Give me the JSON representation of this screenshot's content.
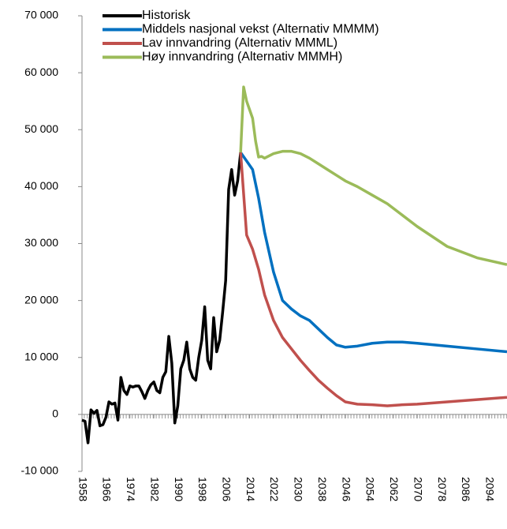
{
  "chart_data": {
    "type": "line",
    "xlim": [
      1958,
      2100
    ],
    "xticks": [
      1958,
      1966,
      1974,
      1982,
      1990,
      1998,
      2006,
      2014,
      2022,
      2030,
      2038,
      2046,
      2054,
      2062,
      2070,
      2078,
      2086,
      2094
    ],
    "ylim": [
      -10000,
      70000
    ],
    "yticks": [
      {
        "value": -10000,
        "label": "-10 000"
      },
      0,
      {
        "value": 10000,
        "label": "10 000"
      },
      {
        "value": 20000,
        "label": "20 000"
      },
      {
        "value": 30000,
        "label": "30 000"
      },
      {
        "value": 40000,
        "label": "40 000"
      },
      {
        "value": 50000,
        "label": "50 000"
      },
      {
        "value": 60000,
        "label": "60 000"
      },
      {
        "value": 70000,
        "label": "70 000"
      }
    ],
    "legend": "top-left",
    "series": [
      {
        "name": "Historisk",
        "color": "#000000",
        "x": [
          1958,
          1959,
          1960,
          1961,
          1962,
          1963,
          1964,
          1965,
          1966,
          1967,
          1968,
          1969,
          1970,
          1971,
          1972,
          1973,
          1974,
          1975,
          1976,
          1977,
          1978,
          1979,
          1980,
          1981,
          1982,
          1983,
          1984,
          1985,
          1986,
          1987,
          1988,
          1989,
          1990,
          1991,
          1992,
          1993,
          1994,
          1995,
          1996,
          1997,
          1998,
          1999,
          2000,
          2001,
          2002,
          2003,
          2004,
          2005,
          2006,
          2007,
          2008,
          2009,
          2010,
          2011
        ],
        "values": [
          -1000,
          -1200,
          -5000,
          800,
          200,
          700,
          -2000,
          -1800,
          -500,
          2200,
          1800,
          2000,
          -1000,
          6500,
          4200,
          3500,
          5000,
          4800,
          5000,
          5000,
          4000,
          2800,
          4200,
          5200,
          5700,
          4200,
          3800,
          6500,
          7500,
          13700,
          9000,
          -1500,
          1500,
          8000,
          9500,
          12700,
          8000,
          6500,
          6000,
          10000,
          13000,
          18900,
          9500,
          8000,
          17000,
          11000,
          13000,
          18000,
          23500,
          39500,
          43000,
          38500,
          41000,
          46000
        ]
      },
      {
        "name": "Middels nasjonal vekst (Alternativ MMMM)",
        "color": "#0070c0",
        "x": [
          2011,
          2013,
          2015,
          2017,
          2019,
          2022,
          2025,
          2028,
          2031,
          2034,
          2037,
          2040,
          2043,
          2046,
          2050,
          2055,
          2060,
          2065,
          2070,
          2080,
          2090,
          2100
        ],
        "values": [
          46000,
          44500,
          43000,
          38000,
          32000,
          25000,
          20000,
          18500,
          17300,
          16500,
          15000,
          13500,
          12200,
          11800,
          12000,
          12500,
          12700,
          12700,
          12500,
          12000,
          11500,
          11000
        ]
      },
      {
        "name": "Lav innvandring (Alternativ MMML)",
        "color": "#c0504d",
        "x": [
          2011,
          2013,
          2015,
          2017,
          2019,
          2022,
          2025,
          2028,
          2031,
          2034,
          2037,
          2040,
          2043,
          2046,
          2050,
          2055,
          2060,
          2065,
          2070,
          2080,
          2090,
          2100
        ],
        "values": [
          46000,
          31500,
          29000,
          25500,
          21000,
          16500,
          13500,
          11500,
          9500,
          7700,
          6000,
          4600,
          3300,
          2200,
          1800,
          1700,
          1500,
          1700,
          1800,
          2200,
          2600,
          3000
        ]
      },
      {
        "name": "Høy innvandring (Alternativ MMMH)",
        "color": "#9bbb59",
        "x": [
          2011,
          2012,
          2013,
          2014,
          2015,
          2016,
          2017,
          2018,
          2019,
          2022,
          2025,
          2028,
          2031,
          2034,
          2037,
          2040,
          2043,
          2046,
          2050,
          2055,
          2060,
          2065,
          2070,
          2080,
          2090,
          2100
        ],
        "values": [
          46000,
          57500,
          55000,
          53500,
          52000,
          48000,
          45200,
          45300,
          45000,
          45800,
          46200,
          46200,
          45800,
          45000,
          44000,
          43000,
          42000,
          41000,
          40000,
          38500,
          37000,
          35000,
          33000,
          29500,
          27500,
          26300
        ]
      }
    ]
  }
}
